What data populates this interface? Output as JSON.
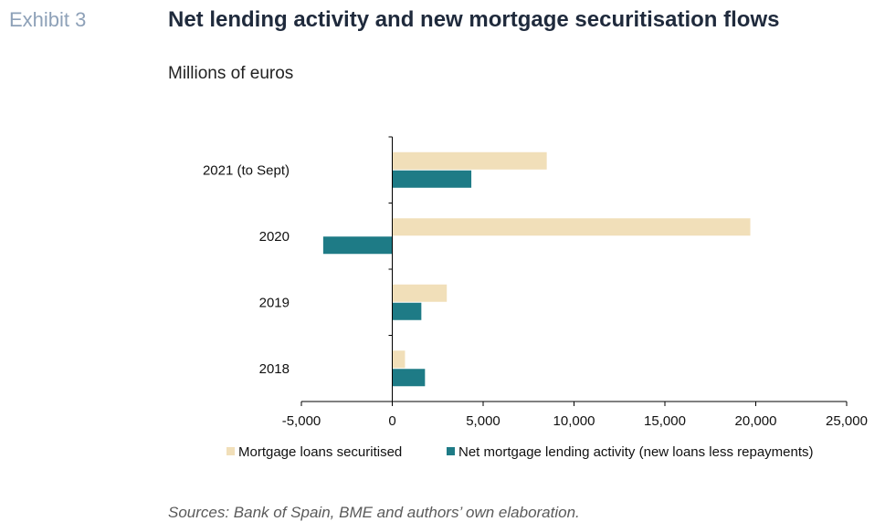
{
  "header": {
    "exhibit": "Exhibit 3",
    "title": "Net lending activity and new mortgage securitisation flows",
    "subtitle": "Millions of euros"
  },
  "footer": {
    "source": "Sources: Bank of Spain, BME and authors’ own elaboration."
  },
  "chart_data": {
    "type": "bar",
    "orientation": "horizontal",
    "categories": [
      "2021 (to Sept)",
      "2020",
      "2019",
      "2018"
    ],
    "series": [
      {
        "name": "Mortgage loans securitised",
        "color": "#f1dfb9",
        "values": [
          8500,
          19700,
          3000,
          700
        ]
      },
      {
        "name": "Net mortgage lending activity (new loans less repayments)",
        "color": "#1e7b86",
        "values": [
          4350,
          -3800,
          1600,
          1800
        ]
      }
    ],
    "xlim": [
      -5000,
      25000
    ],
    "xticks": [
      -5000,
      0,
      5000,
      10000,
      15000,
      20000,
      25000
    ],
    "xtick_labels": [
      "-5,000",
      "0",
      "5,000",
      "10,000",
      "15,000",
      "20,000",
      "25,000"
    ],
    "grid": false,
    "legend_position": "bottom"
  }
}
